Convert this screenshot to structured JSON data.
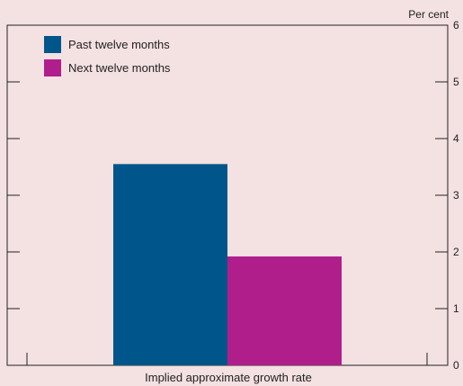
{
  "chart_data": {
    "type": "bar",
    "title": "",
    "unit_label": "Per cent",
    "categories": [
      "Implied approximate growth rate"
    ],
    "xlabel": "Implied approximate growth rate",
    "ylabel": "",
    "ylim": [
      0,
      6
    ],
    "yticks": [
      0,
      1,
      2,
      3,
      4,
      5,
      6
    ],
    "y_axis_side": "right",
    "grid": false,
    "legend_position": "top-left",
    "series": [
      {
        "name": "Past twelve months",
        "values": [
          3.55
        ],
        "color": "#00558a"
      },
      {
        "name": "Next twelve months",
        "values": [
          1.92
        ],
        "color": "#b01e8c"
      }
    ]
  },
  "colors": {
    "background": "#f4e1e1",
    "axis": "#222222"
  }
}
